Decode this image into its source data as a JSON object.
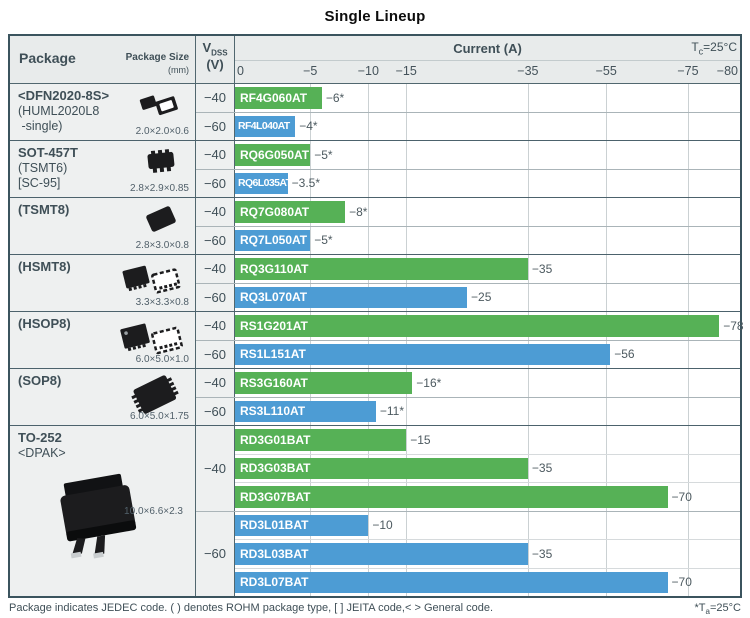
{
  "title": "Single Lineup",
  "header": {
    "package": "Package",
    "package_size": "Package Size",
    "package_size_unit": "(mm)",
    "vdss_v": "V",
    "vdss_sub": "DSS",
    "vdss_unit": "(V)",
    "current": "Current (A)",
    "tc_t": "T",
    "tc_sub": "c",
    "tc_rest": "=25°C"
  },
  "footer": {
    "note": "Package indicates JEDEC code. ( ) denotes ROHM package type, [ ] JEITA code,< > General code.",
    "ta_prefix": "*T",
    "ta_sub": "a",
    "ta_rest": "=25°C"
  },
  "colors": {
    "bar_green": "#56b156",
    "bar_blue": "#4d9cd4",
    "border_dark": "#3b545e",
    "header_bg": "#e8ebeb",
    "cell_bg": "#eef0f0",
    "gridline": "#cbd1d3",
    "text_dark": "#3f4f57"
  },
  "chart_data": {
    "type": "bar",
    "title": "Single Lineup",
    "xlabel": "Current (A)",
    "condition": "Tc=25°C",
    "asterisk_condition": "*Ta=25°C",
    "axis": {
      "orientation": "horizontal",
      "scale": "piecewise",
      "range": [
        0,
        -80
      ],
      "ticks": [
        {
          "label": "0",
          "value": 0,
          "pct": 0
        },
        {
          "label": "−5",
          "value": 5,
          "pct": 14.9
        },
        {
          "label": "−10",
          "value": 10,
          "pct": 26.4
        },
        {
          "label": "−15",
          "value": 15,
          "pct": 33.9
        },
        {
          "label": "−35",
          "value": 35,
          "pct": 58.0
        },
        {
          "label": "−55",
          "value": 55,
          "pct": 73.5
        },
        {
          "label": "−75",
          "value": 75,
          "pct": 89.7
        },
        {
          "label": "−80",
          "value": 80,
          "pct": 100
        }
      ]
    },
    "legend": {
      "green": "VDSS −40 V",
      "blue": "VDSS −60 V"
    },
    "groups": [
      {
        "package_lines": [
          "<DFN2020-8S>",
          "(HUML2020L8",
          " -single)"
        ],
        "size": "2.0×2.0×0.6",
        "icon": "dfn2020",
        "blocks": [
          {
            "vdss": "−40",
            "color": "green",
            "rows": [
              {
                "part": "RF4G060AT",
                "value": -6,
                "label": "−6*"
              }
            ]
          },
          {
            "vdss": "−60",
            "color": "blue",
            "rows": [
              {
                "part": "RF4L040AT",
                "value": -4,
                "label": "−4*"
              }
            ]
          }
        ]
      },
      {
        "package_lines": [
          "SOT-457T",
          "(TSMT6)",
          "[SC-95]"
        ],
        "size": "2.8×2.9×0.85",
        "icon": "sot457t",
        "blocks": [
          {
            "vdss": "−40",
            "color": "green",
            "rows": [
              {
                "part": "RQ6G050AT",
                "value": -5,
                "label": "−5*"
              }
            ]
          },
          {
            "vdss": "−60",
            "color": "blue",
            "rows": [
              {
                "part": "RQ6L035AT",
                "value": -3.5,
                "label": "−3.5*"
              }
            ]
          }
        ]
      },
      {
        "package_lines": [
          "(TSMT8)"
        ],
        "size": "2.8×3.0×0.8",
        "icon": "tsmt8",
        "blocks": [
          {
            "vdss": "−40",
            "color": "green",
            "rows": [
              {
                "part": "RQ7G080AT",
                "value": -8,
                "label": "−8*"
              }
            ]
          },
          {
            "vdss": "−60",
            "color": "blue",
            "rows": [
              {
                "part": "RQ7L050AT",
                "value": -5,
                "label": "−5*"
              }
            ]
          }
        ]
      },
      {
        "package_lines": [
          "(HSMT8)"
        ],
        "size": "3.3×3.3×0.8",
        "icon": "hsmt8",
        "blocks": [
          {
            "vdss": "−40",
            "color": "green",
            "rows": [
              {
                "part": "RQ3G110AT",
                "value": -35,
                "label": "−35"
              }
            ]
          },
          {
            "vdss": "−60",
            "color": "blue",
            "rows": [
              {
                "part": "RQ3L070AT",
                "value": -25,
                "label": "−25"
              }
            ]
          }
        ]
      },
      {
        "package_lines": [
          "(HSOP8)"
        ],
        "size": "6.0×5.0×1.0",
        "icon": "hsop8",
        "blocks": [
          {
            "vdss": "−40",
            "color": "green",
            "rows": [
              {
                "part": "RS1G201AT",
                "value": -78,
                "label": "−78"
              }
            ]
          },
          {
            "vdss": "−60",
            "color": "blue",
            "rows": [
              {
                "part": "RS1L151AT",
                "value": -56,
                "label": "−56"
              }
            ]
          }
        ]
      },
      {
        "package_lines": [
          "(SOP8)"
        ],
        "size": "6.0×5.0×1.75",
        "icon": "sop8",
        "blocks": [
          {
            "vdss": "−40",
            "color": "green",
            "rows": [
              {
                "part": "RS3G160AT",
                "value": -16,
                "label": "−16*"
              }
            ]
          },
          {
            "vdss": "−60",
            "color": "blue",
            "rows": [
              {
                "part": "RS3L110AT",
                "value": -11,
                "label": "−11*"
              }
            ]
          }
        ]
      },
      {
        "package_lines": [
          "TO-252",
          "<DPAK>"
        ],
        "size": "10.0×6.6×2.3",
        "icon": "to252",
        "blocks": [
          {
            "vdss": "−40",
            "color": "green",
            "rows": [
              {
                "part": "RD3G01BAT",
                "value": -15,
                "label": "−15"
              },
              {
                "part": "RD3G03BAT",
                "value": -35,
                "label": "−35"
              },
              {
                "part": "RD3G07BAT",
                "value": -70,
                "label": "−70"
              }
            ]
          },
          {
            "vdss": "−60",
            "color": "blue",
            "rows": [
              {
                "part": "RD3L01BAT",
                "value": -10,
                "label": "−10"
              },
              {
                "part": "RD3L03BAT",
                "value": -35,
                "label": "−35"
              },
              {
                "part": "RD3L07BAT",
                "value": -70,
                "label": "−70"
              }
            ]
          }
        ]
      }
    ]
  }
}
